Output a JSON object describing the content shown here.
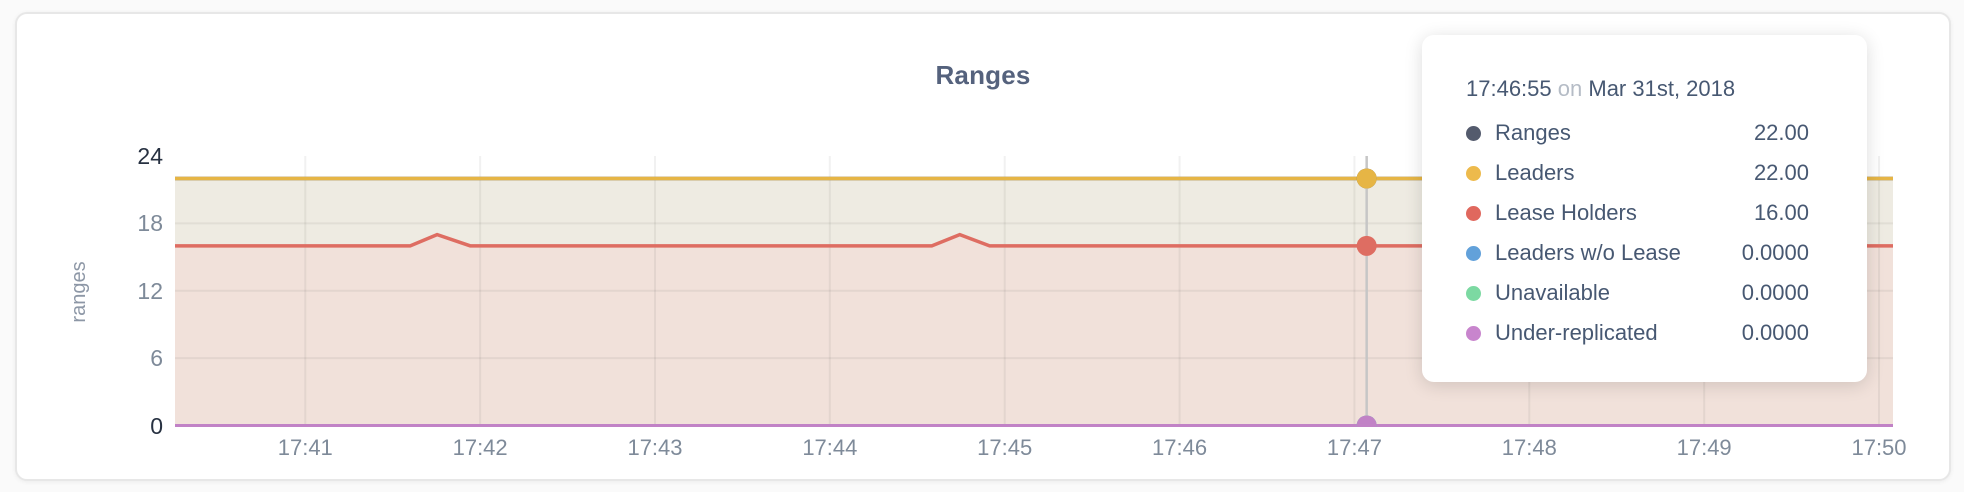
{
  "card": {
    "title": "Ranges"
  },
  "y_axis": {
    "unit_label": "ranges",
    "ticks": [
      {
        "value": 24,
        "label": "24",
        "strong": true
      },
      {
        "value": 18,
        "label": "18",
        "strong": false
      },
      {
        "value": 12,
        "label": "12",
        "strong": false
      },
      {
        "value": 6,
        "label": "6",
        "strong": false
      },
      {
        "value": 0,
        "label": "0",
        "strong": true
      }
    ]
  },
  "tooltip": {
    "time": "17:46:55",
    "on_word": "on",
    "date": "Mar 31st, 2018",
    "rows": [
      {
        "name": "Ranges",
        "value": "22.00",
        "color": "#545b6d"
      },
      {
        "name": "Leaders",
        "value": "22.00",
        "color": "#edba4c"
      },
      {
        "name": "Lease Holders",
        "value": "16.00",
        "color": "#e0685e"
      },
      {
        "name": "Leaders w/o Lease",
        "value": "0.0000",
        "color": "#62a1da"
      },
      {
        "name": "Unavailable",
        "value": "0.0000",
        "color": "#7cd9a2"
      },
      {
        "name": "Under-replicated",
        "value": "0.0000",
        "color": "#c885cd"
      }
    ]
  },
  "chart_data": {
    "type": "line",
    "title": "Ranges",
    "ylabel": "ranges",
    "ylim": [
      0,
      24
    ],
    "y_gridlines": [
      6,
      12,
      18
    ],
    "x_domain_minutes_after_1740": [
      0.255,
      10.08
    ],
    "x_ticks": [
      {
        "minute": 1,
        "label": "17:41"
      },
      {
        "minute": 2,
        "label": "17:42"
      },
      {
        "minute": 3,
        "label": "17:43"
      },
      {
        "minute": 4,
        "label": "17:44"
      },
      {
        "minute": 5,
        "label": "17:45"
      },
      {
        "minute": 6,
        "label": "17:46"
      },
      {
        "minute": 7,
        "label": "17:47"
      },
      {
        "minute": 8,
        "label": "17:48"
      },
      {
        "minute": 9,
        "label": "17:49"
      },
      {
        "minute": 10,
        "label": "17:50"
      }
    ],
    "gridline_color": "rgba(40,40,40,0.065)",
    "series": [
      {
        "name": "Ranges",
        "color": "#565e73",
        "width": 3.5,
        "points": [
          [
            0.255,
            22
          ],
          [
            10.08,
            22
          ]
        ]
      },
      {
        "name": "Leaders",
        "color": "#e6b545",
        "width": 3.5,
        "fill": "#eeebe2",
        "points": [
          [
            0.255,
            22
          ],
          [
            10.08,
            22
          ]
        ]
      },
      {
        "name": "Lease Holders",
        "color": "#de6d62",
        "width": 3.5,
        "fill": "#f1e1da",
        "points": [
          [
            0.255,
            16
          ],
          [
            1.6,
            16
          ],
          [
            1.754,
            17
          ],
          [
            1.943,
            16
          ],
          [
            4.583,
            16
          ],
          [
            4.743,
            17
          ],
          [
            4.914,
            16
          ],
          [
            10.08,
            16
          ]
        ]
      },
      {
        "name": "Leaders w/o Lease",
        "color": "#62a1da",
        "width": 2.5,
        "points": [
          [
            0.255,
            0
          ],
          [
            10.08,
            0
          ]
        ]
      },
      {
        "name": "Unavailable",
        "color": "#7cd9a2",
        "width": 2.5,
        "points": [
          [
            0.255,
            0
          ],
          [
            10.08,
            0
          ]
        ]
      },
      {
        "name": "Under-replicated",
        "color": "#c182c6",
        "width": 3,
        "points": [
          [
            0.255,
            0
          ],
          [
            10.08,
            0
          ]
        ]
      }
    ],
    "hover": {
      "x_minute": 7.07,
      "time": "17:46:55",
      "line_color": "#c6c6c6",
      "values": [
        22,
        22,
        16,
        0,
        0,
        0
      ],
      "dot_radius": 10
    }
  }
}
